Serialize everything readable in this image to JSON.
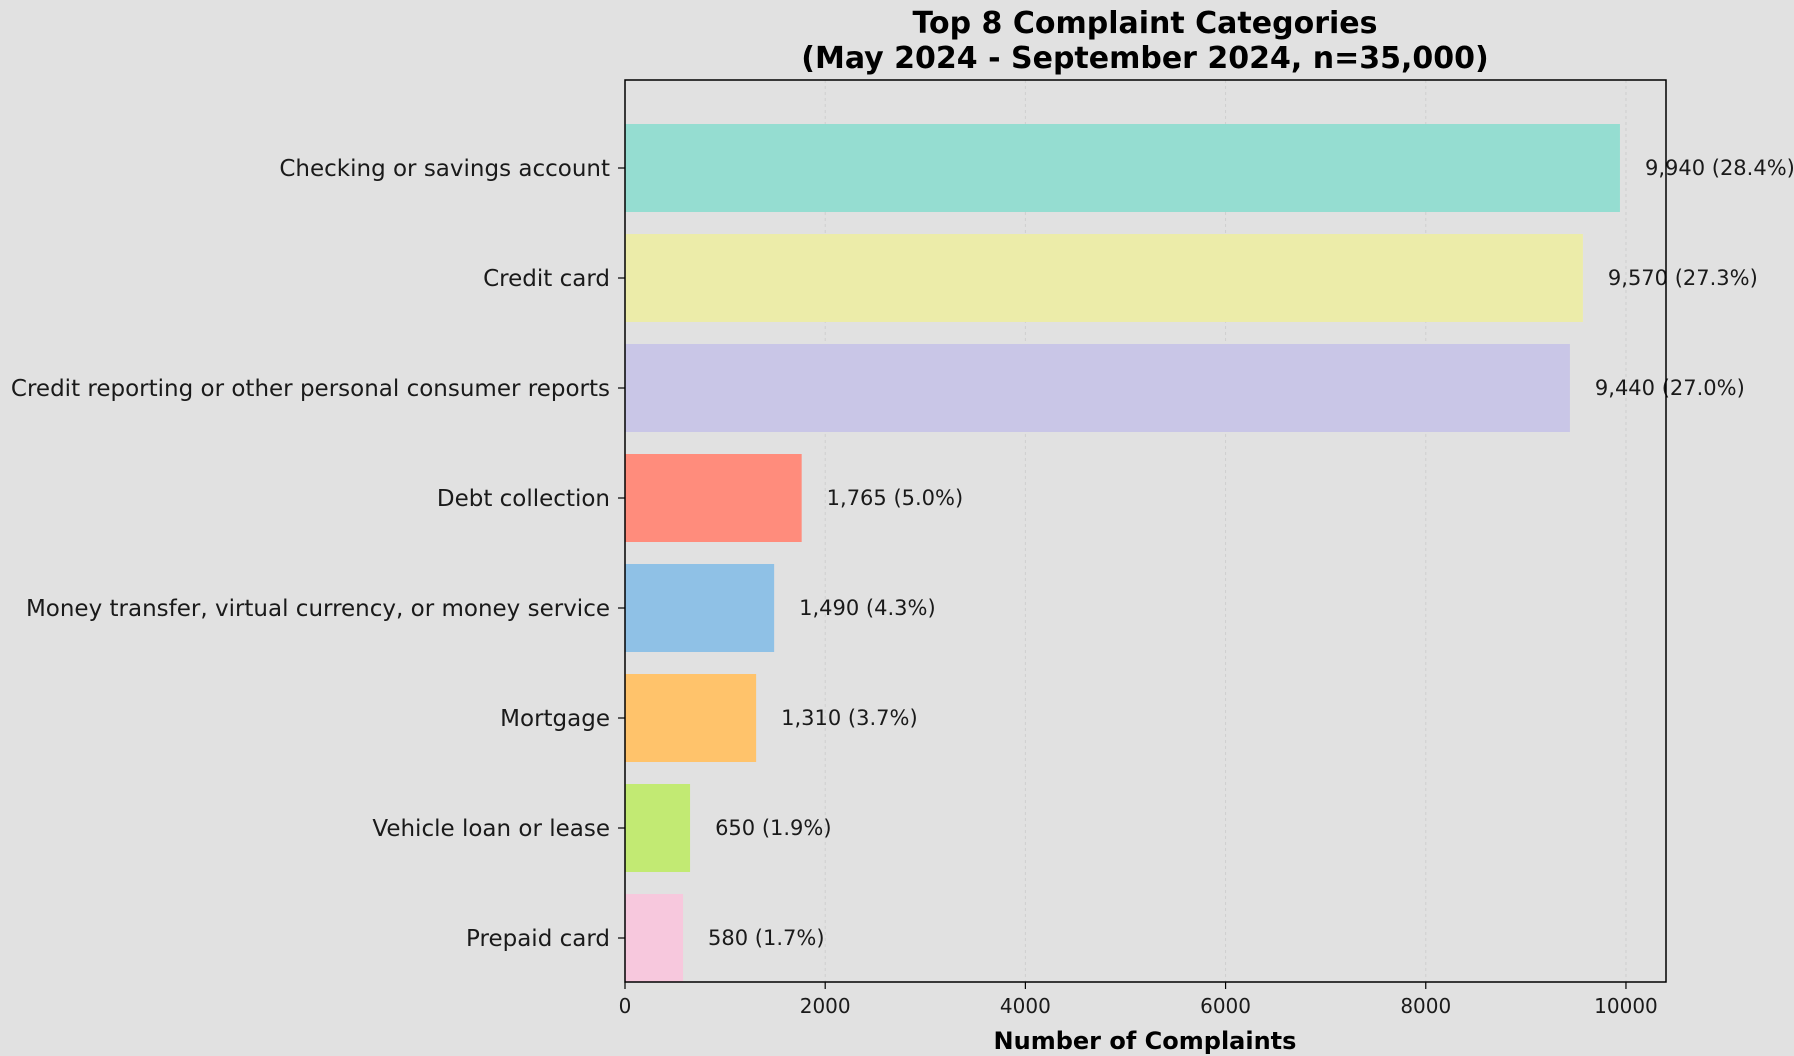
{
  "chart_data": {
    "type": "bar",
    "orientation": "horizontal",
    "title": "Top 8 Complaint Categories",
    "subtitle": "(May 2024 - September 2024, n=35,000)",
    "xlabel": "Number of Complaints",
    "ylabel": "",
    "xlim": [
      0,
      10400
    ],
    "xticks": [
      0,
      2000,
      4000,
      6000,
      8000,
      10000
    ],
    "grid": true,
    "categories": [
      "Checking or savings account",
      "Credit card",
      "Credit reporting or other personal consumer reports",
      "Debt collection",
      "Money transfer, virtual currency, or money service",
      "Mortgage",
      "Vehicle loan or lease",
      "Prepaid card"
    ],
    "values": [
      9940,
      9570,
      9440,
      1765,
      1490,
      1310,
      650,
      580
    ],
    "data_labels": [
      "9,940 (28.4%)",
      "9,570 (27.3%)",
      "9,440 (27.0%)",
      "1,765 (5.0%)",
      "1,490 (4.3%)",
      "1,310 (3.7%)",
      "650 (1.9%)",
      "580 (1.7%)"
    ],
    "colors": [
      "#95ddd1",
      "#ececa9",
      "#c9c6e7",
      "#ff8c7c",
      "#8fc1e6",
      "#ffc36b",
      "#c2ea73",
      "#f7c8dd"
    ]
  }
}
